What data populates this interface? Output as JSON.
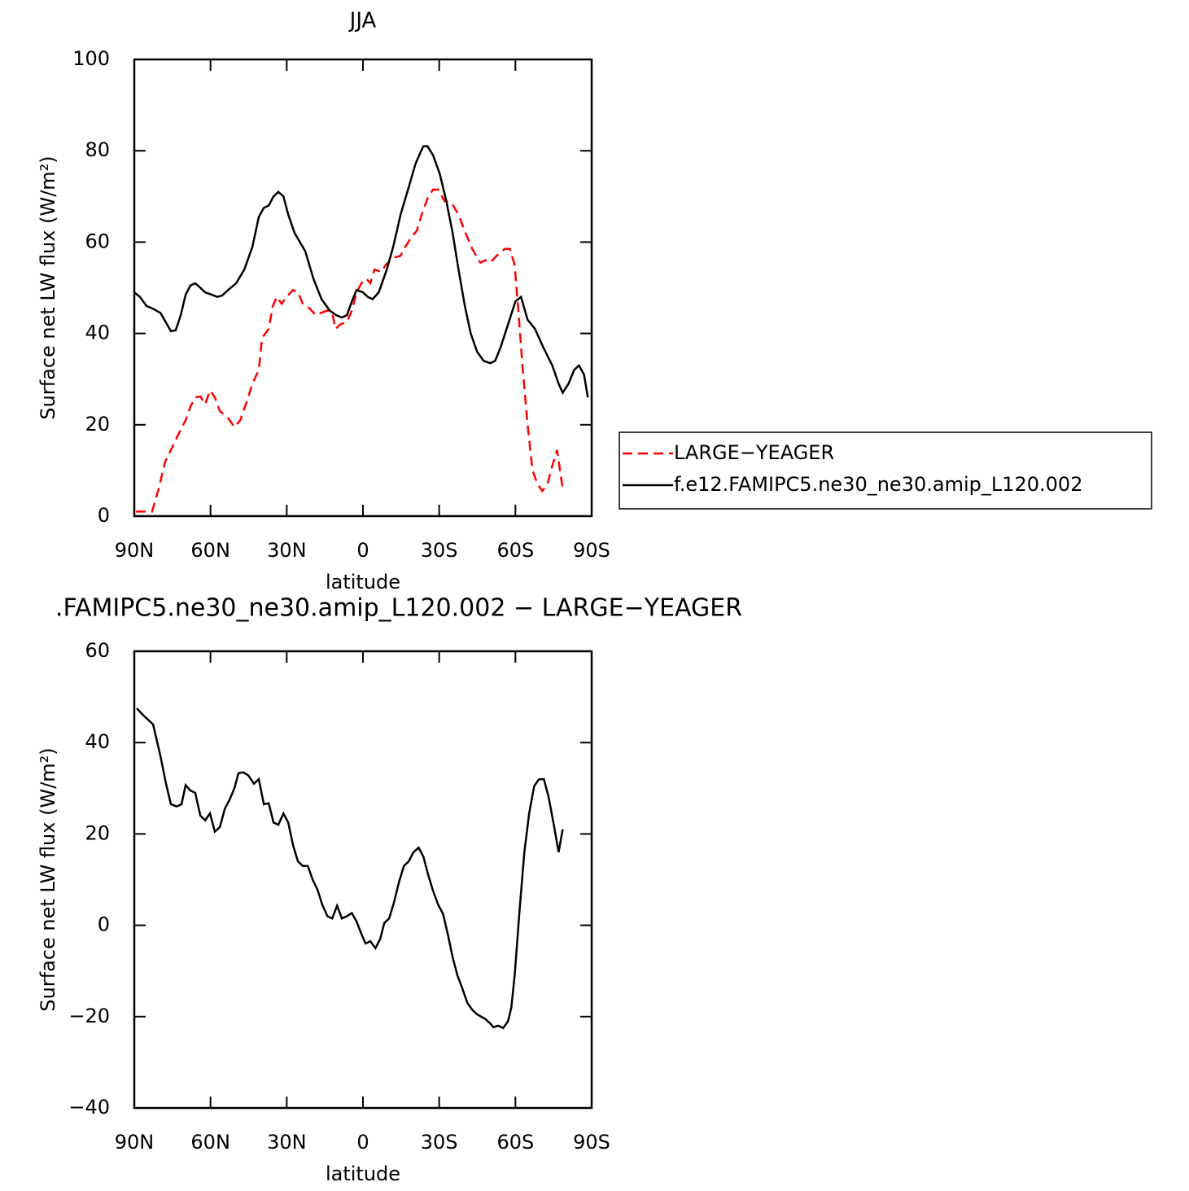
{
  "chart_data": [
    {
      "type": "line",
      "title": "JJA",
      "xlabel": "latitude",
      "ylabel": "Surface net LW flux (W/m²)",
      "xlim": [
        90,
        -90
      ],
      "xticks": [
        {
          "value": 90,
          "label": "90N"
        },
        {
          "value": 60,
          "label": "60N"
        },
        {
          "value": 30,
          "label": "30N"
        },
        0,
        {
          "value": -30,
          "label": "30S"
        },
        {
          "value": -60,
          "label": "60S"
        },
        {
          "value": -90,
          "label": "90S"
        }
      ],
      "ylim": [
        0,
        100
      ],
      "yticks": [
        0,
        20,
        40,
        60,
        80,
        100
      ],
      "legend": "right",
      "series": [
        {
          "name": "LARGE−YEAGER",
          "color": "#ff0000",
          "style": "dashed",
          "x": [
            89.4,
            85.2,
            83,
            80.4,
            77.8,
            75.6,
            73,
            69.8,
            67.9,
            66,
            64,
            62.1,
            60.2,
            58.3,
            56.3,
            53.1,
            50.6,
            48.3,
            45.8,
            43.5,
            41,
            39.7,
            37.1,
            35.5,
            33.9,
            32,
            30.1,
            27.5,
            25.6,
            23.7,
            21.1,
            18.5,
            16.6,
            14,
            12.1,
            10.8,
            8.9,
            6.3,
            4.4,
            2.5,
            0.6,
            -1.3,
            -2.9,
            -4.5,
            -7.1,
            -9,
            -11.6,
            -14.8,
            -16.7,
            -19,
            -21.2,
            -23.1,
            -25.7,
            -27.6,
            -29.6,
            -32.1,
            -35,
            -37.6,
            -40.4,
            -43,
            -46.2,
            -48.1,
            -50.1,
            -52.6,
            -55.8,
            -57.8,
            -59.7,
            -61,
            -62.9,
            -64.8,
            -66.7,
            -68.7,
            -70.6,
            -72.6,
            -74.5,
            -76.4,
            -77.7,
            -78.6
          ],
          "values": [
            1,
            1,
            1,
            6,
            12,
            14.5,
            17.5,
            21,
            24,
            26,
            26.2,
            24.5,
            27.5,
            26,
            23,
            21.5,
            19.5,
            21,
            25,
            29,
            32,
            39,
            41,
            46,
            48,
            46.5,
            48,
            49.5,
            49,
            46.5,
            45.5,
            44,
            44.5,
            45,
            44.5,
            41,
            42,
            42.5,
            45,
            49,
            51,
            52,
            51,
            54,
            53.5,
            55,
            56.5,
            57,
            59,
            61,
            62.5,
            66,
            70,
            71.5,
            71.5,
            69,
            68.5,
            66,
            62,
            58.5,
            55.5,
            56,
            55.5,
            57,
            58.5,
            58.5,
            55,
            46,
            32,
            20,
            10,
            7,
            5.5,
            7,
            11,
            14.5,
            9.5,
            6
          ]
        },
        {
          "name": "f.e12.FAMIPC5.ne30_ne30.amip_L120.002",
          "color": "#000000",
          "style": "solid",
          "x": [
            90,
            87.8,
            85.2,
            83,
            79.7,
            75.6,
            73.7,
            71.7,
            69.8,
            67.9,
            66,
            64,
            62.1,
            59.6,
            57.3,
            55.4,
            53.1,
            49.9,
            46.7,
            43.5,
            41,
            39,
            37.1,
            35.2,
            33.3,
            31.3,
            29.4,
            26.9,
            22.7,
            19.5,
            16.3,
            13.1,
            10.5,
            8.3,
            6.3,
            4.4,
            2.5,
            0,
            -1.9,
            -3.8,
            -6.2,
            -9.4,
            -11.9,
            -14.8,
            -18,
            -20.6,
            -22.5,
            -23.8,
            -25.4,
            -27.6,
            -30.2,
            -32.8,
            -35.3,
            -37.6,
            -40.1,
            -42.4,
            -44.9,
            -47.5,
            -50.1,
            -52,
            -54.2,
            -57.1,
            -60,
            -62.2,
            -64.8,
            -67.7,
            -70.9,
            -74.5,
            -77,
            -78.6,
            -80.9,
            -83.1,
            -85,
            -87,
            -88.5
          ],
          "values": [
            49,
            48,
            46,
            45.5,
            44.5,
            40.5,
            40.7,
            44,
            48.5,
            50.5,
            51,
            50,
            49,
            48.5,
            48,
            48.3,
            49.5,
            51,
            54,
            59,
            65.5,
            67.5,
            68,
            70,
            71,
            70,
            66,
            62,
            58,
            52,
            47.5,
            45,
            44,
            43.5,
            44,
            47,
            49.5,
            49,
            48,
            47.5,
            49,
            54,
            59,
            66,
            72,
            77,
            79.5,
            81,
            81,
            79,
            75,
            69,
            62,
            54,
            46,
            40,
            36,
            34,
            33.5,
            34,
            37,
            42,
            47,
            48,
            43,
            41,
            37,
            33,
            29,
            27,
            29,
            32,
            33,
            31,
            26
          ]
        }
      ]
    },
    {
      "type": "line",
      "title": ".FAMIPC5.ne30_ne30.amip_L120.002 − LARGE−YEAGER",
      "xlabel": "latitude",
      "ylabel": "Surface net LW flux (W/m²)",
      "xlim": [
        90,
        -90
      ],
      "xticks": [
        {
          "value": 90,
          "label": "90N"
        },
        {
          "value": 60,
          "label": "60N"
        },
        {
          "value": 30,
          "label": "30N"
        },
        0,
        {
          "value": -30,
          "label": "30S"
        },
        {
          "value": -60,
          "label": "60S"
        },
        {
          "value": -90,
          "label": "90S"
        }
      ],
      "ylim": [
        -40,
        60
      ],
      "yticks": [
        {
          "value": -40,
          "label": "−40"
        },
        {
          "value": -20,
          "label": "−20"
        },
        0,
        20,
        40,
        60
      ],
      "color": "#000000",
      "x": [
        89,
        86.5,
        82.6,
        79.7,
        77.5,
        75.6,
        73.3,
        71.4,
        69.8,
        67.9,
        66,
        64,
        62.1,
        60.2,
        58.3,
        56.3,
        54.4,
        52.5,
        50.6,
        49,
        47.1,
        45.1,
        42.9,
        41,
        39,
        37.1,
        35.2,
        33.3,
        31.3,
        29.4,
        27.5,
        25.6,
        23.7,
        21.7,
        19.8,
        17.9,
        16,
        14,
        12.1,
        10.2,
        8.3,
        6.3,
        4.4,
        2.5,
        0.9,
        -1,
        -2.9,
        -4.9,
        -6.8,
        -8.4,
        -10.3,
        -12.2,
        -14.2,
        -16.1,
        -18,
        -19.9,
        -21.9,
        -23.8,
        -25.7,
        -27.6,
        -29.6,
        -31.5,
        -33.4,
        -35.3,
        -37.2,
        -39.2,
        -41.1,
        -43,
        -44.9,
        -48.1,
        -50.1,
        -51.3,
        -53.3,
        -55.2,
        -57.1,
        -58.4,
        -59.7,
        -61.6,
        -63.5,
        -65.4,
        -67.4,
        -69.3,
        -71.2,
        -73.1,
        -75.1,
        -77,
        -78.6
      ],
      "values": [
        47.5,
        46,
        44,
        37,
        31,
        26.5,
        26,
        26.5,
        30.7,
        29.5,
        29,
        24,
        23,
        24.5,
        20.5,
        21.5,
        25.5,
        27.5,
        30,
        33.3,
        33.5,
        32.8,
        31,
        32,
        26.5,
        26.7,
        22.5,
        22,
        24.5,
        22.5,
        17.5,
        14,
        13,
        13,
        10,
        7.8,
        4.5,
        2,
        1.5,
        4.3,
        1.5,
        2,
        2.7,
        0.8,
        -1.5,
        -4,
        -3.5,
        -5,
        -3,
        0.5,
        1.5,
        5,
        9.5,
        13,
        14,
        16,
        17,
        15,
        11,
        7.5,
        4.5,
        2.5,
        -2,
        -7,
        -11,
        -14,
        -17,
        -18.5,
        -19.5,
        -20.5,
        -21.5,
        -22.3,
        -22,
        -22.5,
        -21,
        -18,
        -11,
        3,
        16,
        24.5,
        30.5,
        32,
        32,
        28,
        22,
        16,
        21
      ]
    }
  ]
}
